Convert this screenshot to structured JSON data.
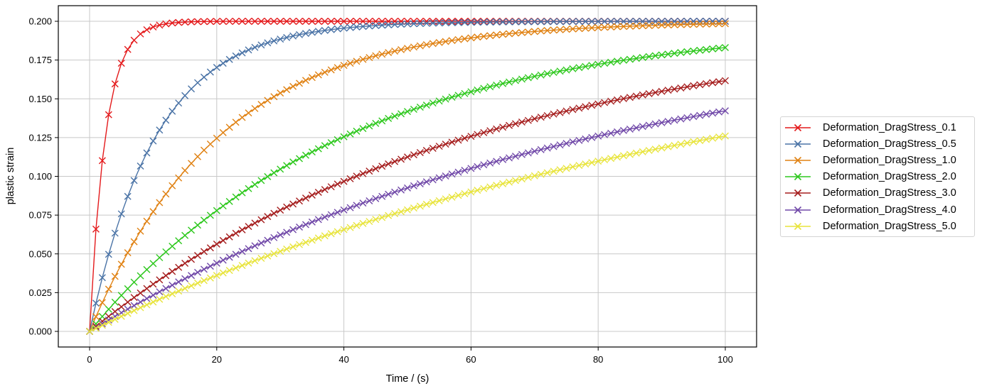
{
  "chart_data": {
    "type": "line",
    "title": "",
    "xlabel": "Time / (s)",
    "ylabel": "plastic strain",
    "xlim": [
      -5,
      105
    ],
    "ylim": [
      -0.01,
      0.21
    ],
    "xticks": [
      0,
      20,
      40,
      60,
      80,
      100
    ],
    "xtick_labels": [
      "0",
      "20",
      "40",
      "60",
      "80",
      "100"
    ],
    "yticks": [
      0.0,
      0.025,
      0.05,
      0.075,
      0.1,
      0.125,
      0.15,
      0.175,
      0.2
    ],
    "ytick_labels": [
      "0.000",
      "0.025",
      "0.050",
      "0.075",
      "0.100",
      "0.125",
      "0.150",
      "0.175",
      "0.200"
    ],
    "grid": true,
    "legend_position": "outside right, vertically centered",
    "marker": "x",
    "x_sampling": {
      "start": 0,
      "stop": 100,
      "step": 1
    },
    "model": "y = 0.2 * (1 - exp(-t / tau))",
    "x": [
      0,
      10,
      20,
      30,
      40,
      50,
      60,
      70,
      80,
      90,
      100
    ],
    "series": [
      {
        "name": "Deformation_DragStress_0.1",
        "color": "#e41a1c",
        "tau": 2.5,
        "values": [
          0,
          0.1963,
          0.1999,
          0.2,
          0.2,
          0.2,
          0.2,
          0.2,
          0.2,
          0.2,
          0.2
        ]
      },
      {
        "name": "Deformation_DragStress_0.5",
        "color": "#4a73a6",
        "tau": 10.5,
        "values": [
          0,
          0.1229,
          0.1703,
          0.1885,
          0.1955,
          0.1983,
          0.1993,
          0.1997,
          0.1999,
          0.2,
          0.2
        ]
      },
      {
        "name": "Deformation_DragStress_1.0",
        "color": "#e08214",
        "tau": 20.5,
        "values": [
          0,
          0.0772,
          0.1246,
          0.1537,
          0.1716,
          0.1826,
          0.1893,
          0.1934,
          0.1959,
          0.1975,
          0.1985
        ]
      },
      {
        "name": "Deformation_DragStress_2.0",
        "color": "#2ec81e",
        "tau": 40.5,
        "values": [
          0,
          0.0438,
          0.078,
          0.1048,
          0.1257,
          0.1421,
          0.1549,
          0.1649,
          0.1727,
          0.1788,
          0.1835
        ]
      },
      {
        "name": "Deformation_DragStress_3.0",
        "color": "#a51d1d",
        "tau": 60.5,
        "values": [
          0,
          0.0305,
          0.0563,
          0.0782,
          0.0968,
          0.1126,
          0.1259,
          0.1372,
          0.1468,
          0.1549,
          0.1617
        ]
      },
      {
        "name": "Deformation_DragStress_4.0",
        "color": "#7048a8",
        "tau": 80.5,
        "values": [
          0,
          0.0234,
          0.044,
          0.0622,
          0.0783,
          0.0925,
          0.105,
          0.1161,
          0.1258,
          0.1344,
          0.142
        ]
      },
      {
        "name": "Deformation_DragStress_5.0",
        "color": "#e8e43c",
        "tau": 100.5,
        "values": [
          0,
          0.019,
          0.0362,
          0.0517,
          0.0658,
          0.0786,
          0.0902,
          0.1006,
          0.1101,
          0.1187,
          0.1262
        ]
      }
    ]
  },
  "legend": {
    "items": [
      {
        "label": "Deformation_DragStress_0.1"
      },
      {
        "label": "Deformation_DragStress_0.5"
      },
      {
        "label": "Deformation_DragStress_1.0"
      },
      {
        "label": "Deformation_DragStress_2.0"
      },
      {
        "label": "Deformation_DragStress_3.0"
      },
      {
        "label": "Deformation_DragStress_4.0"
      },
      {
        "label": "Deformation_DragStress_5.0"
      }
    ]
  },
  "axes": {
    "xlabel": "Time / (s)",
    "ylabel": "plastic strain"
  }
}
